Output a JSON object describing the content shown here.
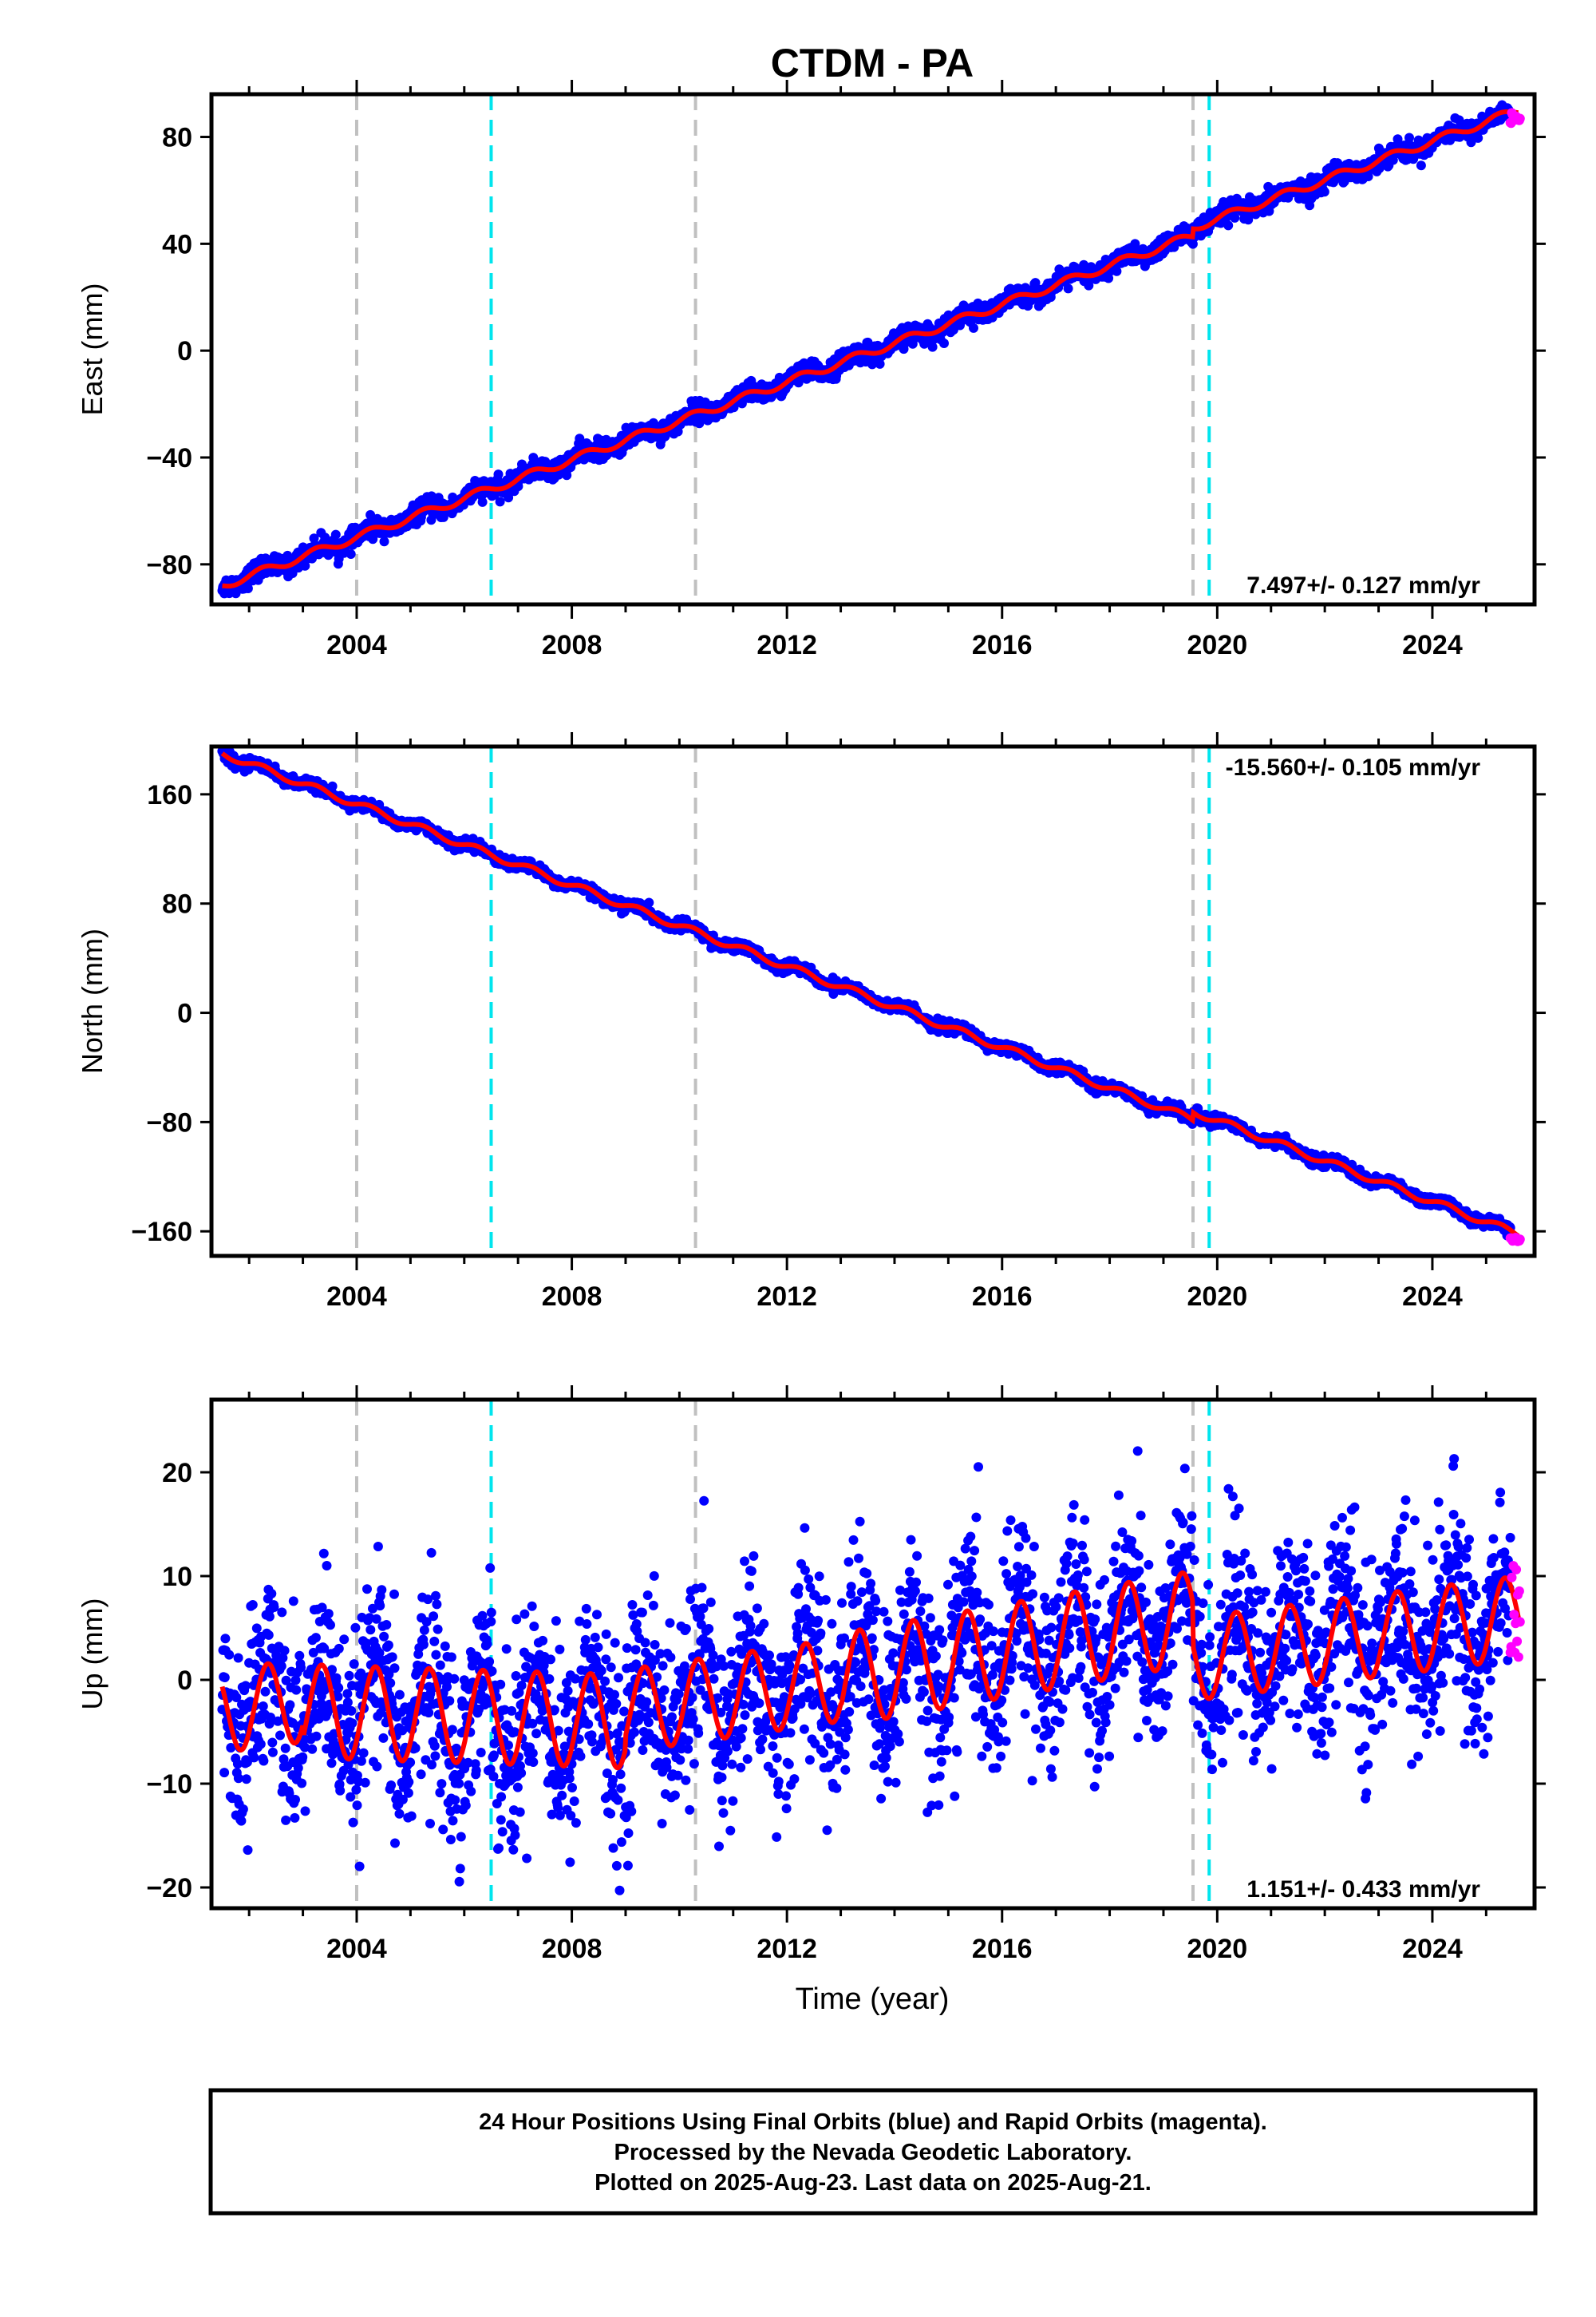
{
  "title": "CTDM - PA",
  "colors": {
    "final_orbits": "#0000ff",
    "rapid_orbits": "#ff00ff",
    "model": "#ff0000",
    "gray_marker": "#c0c0c0",
    "cyan_marker": "#00e5ee"
  },
  "chart_data": [
    {
      "type": "scatter",
      "panel": "east",
      "ylabel": "East (mm)",
      "xlim": [
        2001.3,
        2025.9
      ],
      "ylim": [
        -95,
        96
      ],
      "yticks": [
        -80,
        -40,
        0,
        40,
        80
      ],
      "xticks": [
        2004,
        2008,
        2012,
        2016,
        2020,
        2024
      ],
      "rate_text": "7.497+/- 0.127 mm/yr",
      "rate_position": "bottom-right",
      "trend": {
        "x": [
          2001.5,
          2025.6
        ],
        "y": [
          -88,
          87
        ]
      },
      "offsets": [
        {
          "x": 2019.55,
          "dy": 3
        }
      ],
      "seasonal_amplitude": 1.5,
      "scatter_sigma": 1.8,
      "rapid": {
        "x_start": 2025.45,
        "x_end": 2025.63,
        "y_mean": 87,
        "spread": 4
      }
    },
    {
      "type": "scatter",
      "panel": "north",
      "ylabel": "North (mm)",
      "xlim": [
        2001.3,
        2025.9
      ],
      "ylim": [
        -178,
        195
      ],
      "yticks": [
        -160,
        -80,
        0,
        80,
        160
      ],
      "xticks": [
        2004,
        2008,
        2012,
        2016,
        2020,
        2024
      ],
      "rate_text": "-15.560+/- 0.105 mm/yr",
      "rate_position": "top-right",
      "trend": {
        "x": [
          2001.5,
          2025.6
        ],
        "y": [
          190,
          -168
        ]
      },
      "offsets": [
        {
          "x": 2019.55,
          "dy": 6
        }
      ],
      "seasonal_amplitude": 2.5,
      "scatter_sigma": 2.0,
      "rapid": {
        "x_start": 2025.45,
        "x_end": 2025.63,
        "y_mean": -166,
        "spread": 3
      }
    },
    {
      "type": "scatter",
      "panel": "up",
      "ylabel": "Up (mm)",
      "xlabel": "Time (year)",
      "xlim": [
        2001.3,
        2025.9
      ],
      "ylim": [
        -22,
        27
      ],
      "yticks": [
        -20,
        -10,
        0,
        10,
        20
      ],
      "xticks": [
        2004,
        2008,
        2012,
        2016,
        2020,
        2024
      ],
      "rate_text": "1.151+/- 0.433 mm/yr",
      "rate_position": "bottom-right",
      "model_segments": [
        {
          "x": [
            2001.5,
            2003.0
          ],
          "base": [
            -3,
            -2
          ],
          "amp": 4
        },
        {
          "x": [
            2003.0,
            2009.0
          ],
          "base": [
            -3,
            -4
          ],
          "amp": 4.5
        },
        {
          "x": [
            2009.0,
            2013.0
          ],
          "base": [
            -3,
            0
          ],
          "amp": 4
        },
        {
          "x": [
            2013.0,
            2019.55
          ],
          "base": [
            0,
            6
          ],
          "amp": 4.5
        },
        {
          "x": [
            2019.55,
            2025.6
          ],
          "base": [
            2,
            6
          ],
          "amp": 4
        }
      ],
      "scatter_sigma": 4.5,
      "rapid": {
        "x_start": 2025.45,
        "x_end": 2025.63,
        "y_mean": 6,
        "spread": 10
      }
    }
  ],
  "event_lines": {
    "gray": [
      2004.0,
      2010.3,
      2019.55
    ],
    "cyan": [
      2006.5,
      2019.85
    ]
  },
  "footer": {
    "line1": "24 Hour Positions Using Final Orbits (blue) and Rapid Orbits (magenta).",
    "line2": "Processed by the Nevada Geodetic Laboratory.",
    "line3": "Plotted on 2025-Aug-23. Last data on 2025-Aug-21."
  }
}
